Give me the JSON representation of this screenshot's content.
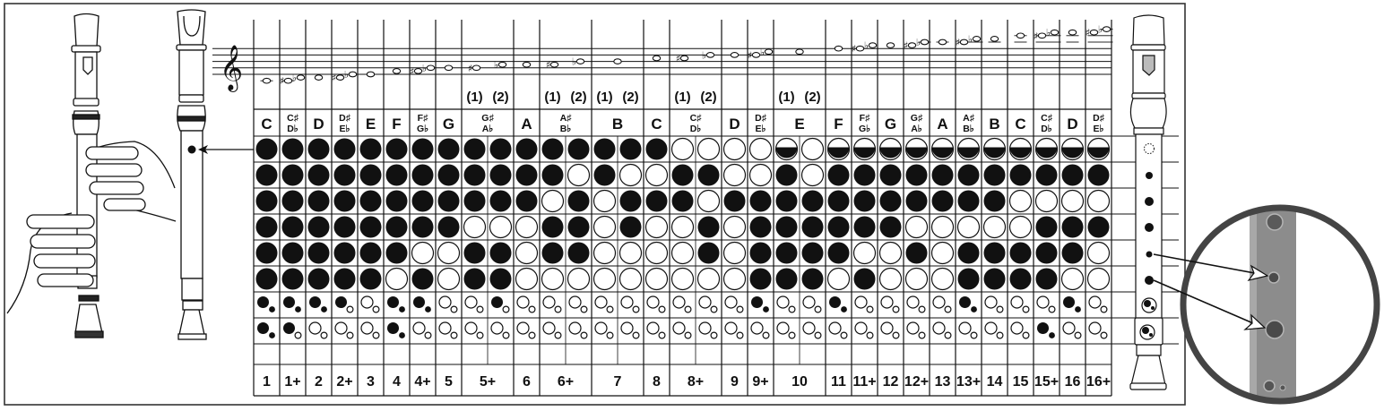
{
  "chart": {
    "variant_labels": [
      "(1)",
      "(2)"
    ],
    "states": {
      "X": "closed",
      "O": "open",
      "H": "half-closed"
    },
    "columns": [
      {
        "number": "1",
        "note": [
          "C"
        ],
        "pitches": [
          "C4"
        ],
        "fingerings": [
          "XXXXXX-XX-XX"
        ]
      },
      {
        "number": "1+",
        "note": [
          "C♯",
          "D♭"
        ],
        "pitches": [
          "C#4",
          "Db4"
        ],
        "fingerings": [
          "XXXXXX-XX-XO"
        ]
      },
      {
        "number": "2",
        "note": [
          "D"
        ],
        "pitches": [
          "D4"
        ],
        "fingerings": [
          "XXXXXX-XX-OO"
        ]
      },
      {
        "number": "2+",
        "note": [
          "D♯",
          "E♭"
        ],
        "pitches": [
          "D#4",
          "Eb4"
        ],
        "fingerings": [
          "XXXXXX-XO-OO"
        ]
      },
      {
        "number": "3",
        "note": [
          "E"
        ],
        "pitches": [
          "E4"
        ],
        "fingerings": [
          "XXXXXX-OO-OO"
        ]
      },
      {
        "number": "4",
        "note": [
          "F"
        ],
        "pitches": [
          "F4"
        ],
        "fingerings": [
          "XXXXXO-XX-XX"
        ]
      },
      {
        "number": "4+",
        "note": [
          "F♯",
          "G♭"
        ],
        "pitches": [
          "F#4",
          "Gb4"
        ],
        "fingerings": [
          "XXXXOX-XX-OO"
        ]
      },
      {
        "number": "5",
        "note": [
          "G"
        ],
        "pitches": [
          "G4"
        ],
        "fingerings": [
          "XXXXOO-OO-OO"
        ]
      },
      {
        "number": "5+",
        "note": [
          "G♯",
          "A♭"
        ],
        "pitches": [
          "G#4",
          "Ab4"
        ],
        "fingerings": [
          "XXXOXX-OO-OO",
          "XXXOXX-XO-OO"
        ]
      },
      {
        "number": "6",
        "note": [
          "A"
        ],
        "pitches": [
          "A4"
        ],
        "fingerings": [
          "XXXOOO-OO-OO"
        ]
      },
      {
        "number": "6+",
        "note": [
          "A♯",
          "B♭"
        ],
        "pitches": [
          "A#4",
          "Bb4"
        ],
        "fingerings": [
          "XXOXXO-OO-OO",
          "XOXXXO-OO-OO"
        ]
      },
      {
        "number": "7",
        "note": [
          "B"
        ],
        "pitches": [
          "B4"
        ],
        "fingerings": [
          "XXOOOO-OO-OO",
          "XOXXOO-OO-OO"
        ]
      },
      {
        "number": "8",
        "note": [
          "C"
        ],
        "pitches": [
          "C5"
        ],
        "fingerings": [
          "XOXOOO-OO-OO"
        ]
      },
      {
        "number": "8+",
        "note": [
          "C♯",
          "D♭"
        ],
        "pitches": [
          "C#5",
          "Db5"
        ],
        "fingerings": [
          "OXXOOO-OO-OO",
          "OXOXXO-OO-OO"
        ]
      },
      {
        "number": "9",
        "note": [
          "D"
        ],
        "pitches": [
          "D5"
        ],
        "fingerings": [
          "OOXOOO-OO-OO"
        ]
      },
      {
        "number": "9+",
        "note": [
          "D♯",
          "E♭"
        ],
        "pitches": [
          "D#5",
          "Eb5"
        ],
        "fingerings": [
          "OOXXXX-XX-OO"
        ]
      },
      {
        "number": "10",
        "note": [
          "E"
        ],
        "pitches": [
          "E5"
        ],
        "fingerings": [
          "HXXXXX-OO-OO",
          "OOXXXX-OO-OO"
        ]
      },
      {
        "number": "11",
        "note": [
          "F"
        ],
        "pitches": [
          "F5"
        ],
        "fingerings": [
          "HXXXXO-XX-OO"
        ]
      },
      {
        "number": "11+",
        "note": [
          "F♯",
          "G♭"
        ],
        "pitches": [
          "F#5",
          "Gb5"
        ],
        "fingerings": [
          "HXXXOX-OO-OO"
        ]
      },
      {
        "number": "12",
        "note": [
          "G"
        ],
        "pitches": [
          "G5"
        ],
        "fingerings": [
          "HXXXOO-OO-OO"
        ]
      },
      {
        "number": "12+",
        "note": [
          "G♯",
          "A♭"
        ],
        "pitches": [
          "G#5",
          "Ab5"
        ],
        "fingerings": [
          "HXXOXO-OO-OO"
        ]
      },
      {
        "number": "13",
        "note": [
          "A"
        ],
        "pitches": [
          "A5"
        ],
        "fingerings": [
          "HXXOOO-OO-OO"
        ]
      },
      {
        "number": "13+",
        "note": [
          "A♯",
          "B♭"
        ],
        "pitches": [
          "A#5",
          "Bb5"
        ],
        "fingerings": [
          "HXXOXX-XX-OO"
        ]
      },
      {
        "number": "14",
        "note": [
          "B"
        ],
        "pitches": [
          "B5"
        ],
        "fingerings": [
          "HXXOXX-OO-OO"
        ]
      },
      {
        "number": "15",
        "note": [
          "C"
        ],
        "pitches": [
          "C6"
        ],
        "fingerings": [
          "HXOOXX-OO-OO"
        ]
      },
      {
        "number": "15+",
        "note": [
          "C♯",
          "D♭"
        ],
        "pitches": [
          "C#6",
          "Db6"
        ],
        "fingerings": [
          "HXOXXX-OO-XX"
        ]
      },
      {
        "number": "16",
        "note": [
          "D"
        ],
        "pitches": [
          "D6"
        ],
        "fingerings": [
          "HXOXXO-XX-OO"
        ]
      },
      {
        "number": "16+",
        "note": [
          "D♯",
          "E♭"
        ],
        "pitches": [
          "D#6",
          "Eb6"
        ],
        "fingerings": [
          "HXOXOO-OO-OO"
        ]
      }
    ]
  }
}
